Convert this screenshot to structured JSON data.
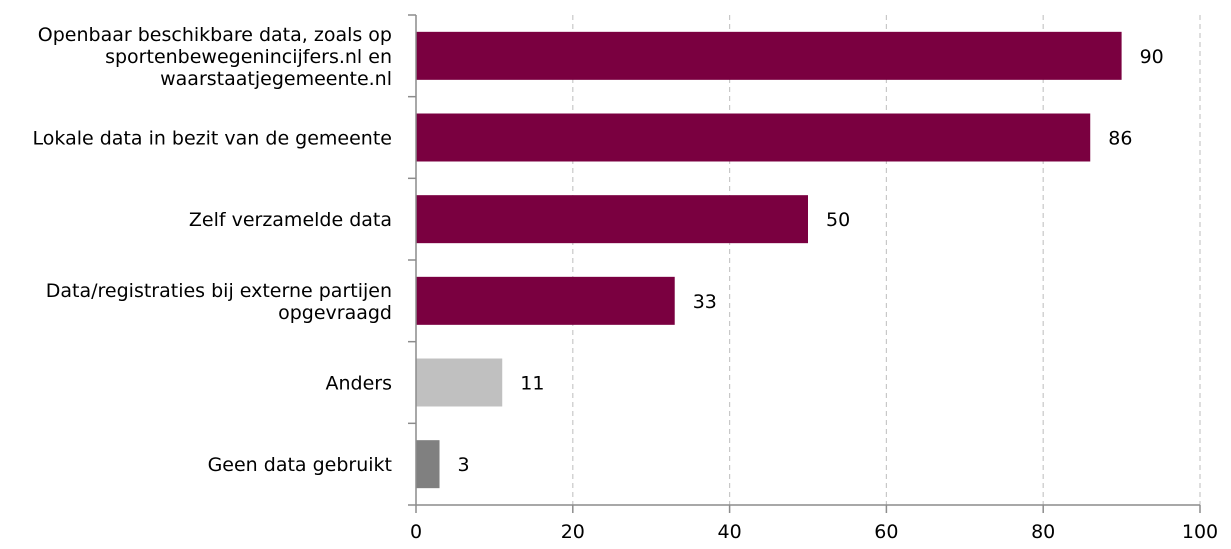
{
  "chart_data": {
    "type": "bar",
    "orientation": "horizontal",
    "categories": [
      "Openbaar beschikbare data, zoals op sportenbewegenincijfers.nl en waarstaatjegemeente.nl",
      "Lokale data in bezit van de gemeente",
      "Zelf verzamelde data",
      "Data/registraties bij externe partijen opgevraagd",
      "Anders",
      "Geen data gebruikt"
    ],
    "category_lines": [
      [
        "Openbaar beschikbare data, zoals op",
        "sportenbewegenincijfers.nl en",
        "waarstaatjegemeente.nl"
      ],
      [
        "Lokale data in bezit van de gemeente"
      ],
      [
        "Zelf verzamelde data"
      ],
      [
        "Data/registraties bij externe partijen",
        "opgevraagd"
      ],
      [
        "Anders"
      ],
      [
        "Geen data gebruikt"
      ]
    ],
    "values": [
      90,
      86,
      50,
      33,
      11,
      3
    ],
    "data_labels": [
      "90",
      "86",
      "50",
      "33",
      "11",
      "3"
    ],
    "bar_colors": [
      "#7a0040",
      "#7a0040",
      "#7a0040",
      "#7a0040",
      "#c0c0c0",
      "#808080"
    ],
    "xlim": [
      0,
      100
    ],
    "x_ticks": [
      0,
      20,
      40,
      60,
      80,
      100
    ],
    "x_tick_labels": [
      "0",
      "20",
      "40",
      "60",
      "80",
      "100"
    ],
    "grid": "vertical dashed",
    "legend": "none"
  }
}
